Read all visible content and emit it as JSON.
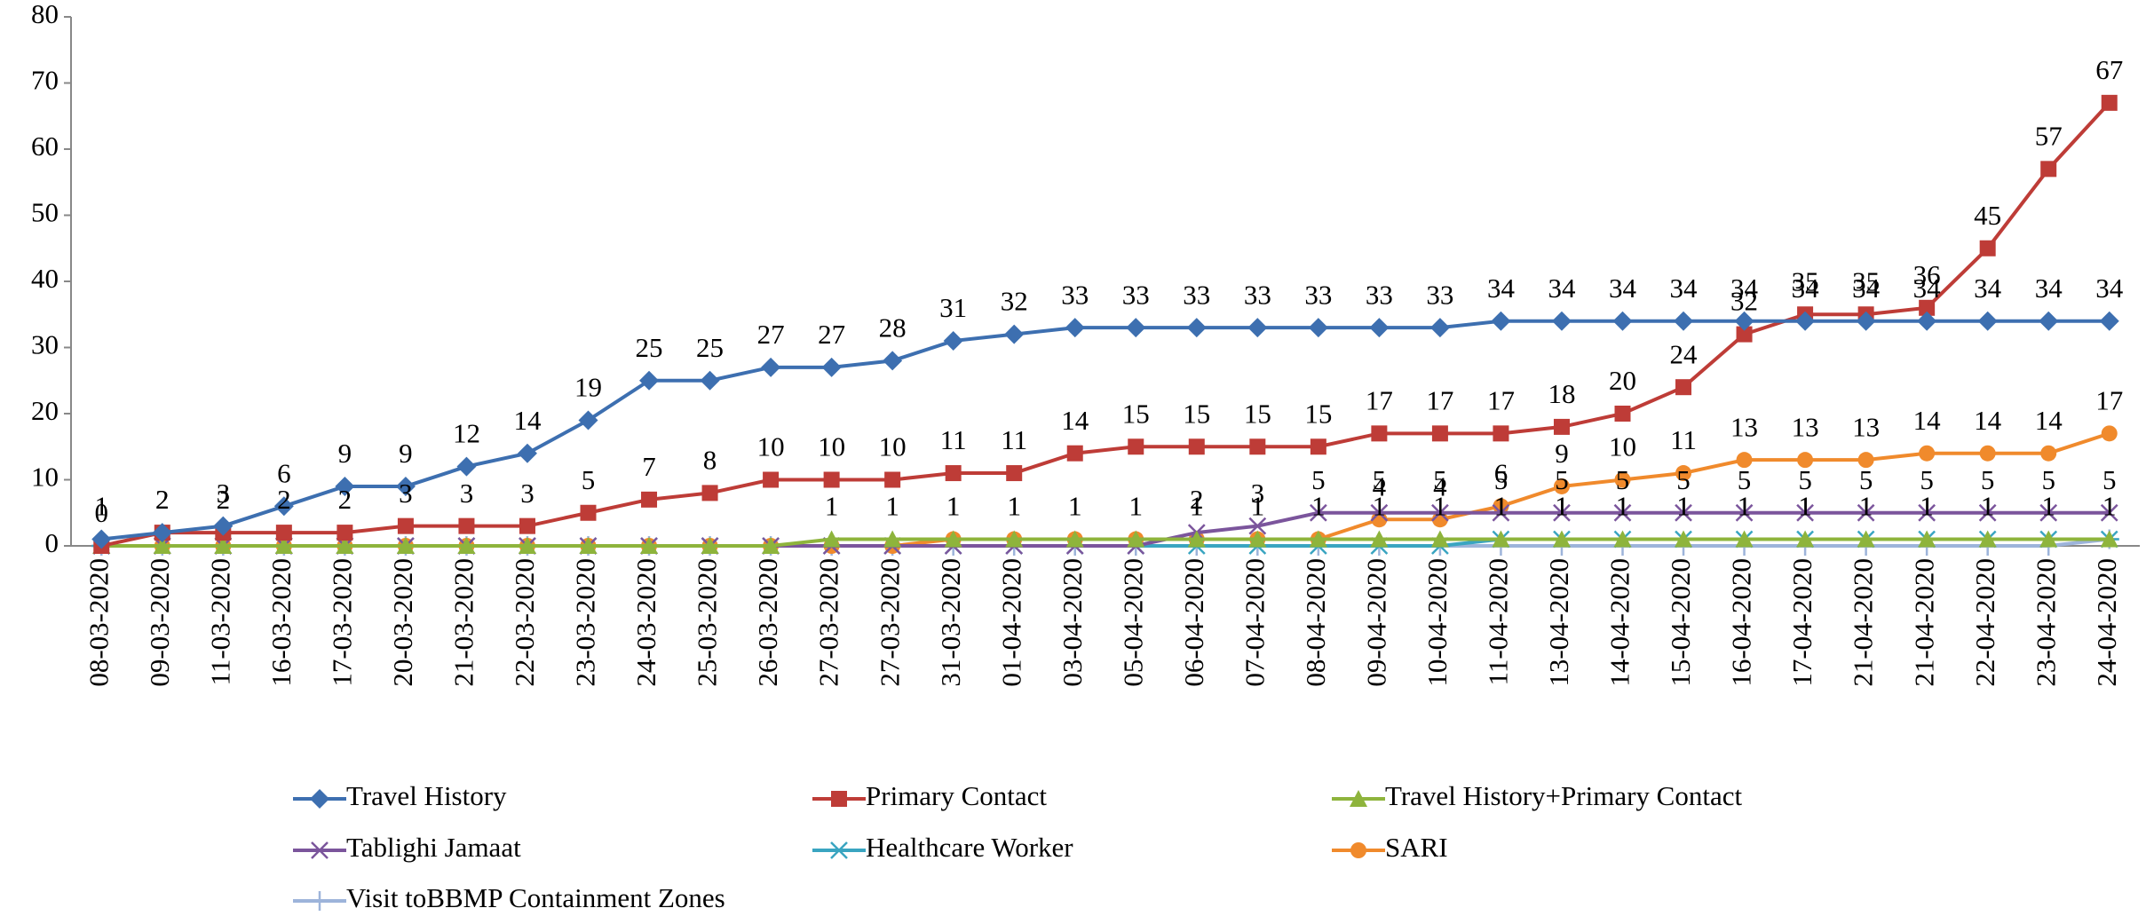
{
  "chart_data": {
    "type": "line",
    "categories": [
      "08-03-2020",
      "09-03-2020",
      "11-03-2020",
      "16-03-2020",
      "17-03-2020",
      "20-03-2020",
      "21-03-2020",
      "22-03-2020",
      "23-03-2020",
      "24-03-2020",
      "25-03-2020",
      "26-03-2020",
      "27-03-2020",
      "27-03-2020",
      "31-03-2020",
      "01-04-2020",
      "03-04-2020",
      "05-04-2020",
      "06-04-2020",
      "07-04-2020",
      "08-04-2020",
      "09-04-2020",
      "10-04-2020",
      "11-04-2020",
      "13-04-2020",
      "14-04-2020",
      "15-04-2020",
      "16-04-2020",
      "17-04-2020",
      "21-04-2020",
      "21-04-2020",
      "22-04-2020",
      "23-04-2020",
      "24-04-2020"
    ],
    "series": [
      {
        "name": "Travel History",
        "color": "#3d6fb0",
        "marker": "diamond",
        "values": [
          1,
          2,
          3,
          6,
          9,
          9,
          12,
          14,
          19,
          25,
          25,
          27,
          27,
          28,
          31,
          32,
          33,
          33,
          33,
          33,
          33,
          33,
          33,
          34,
          34,
          34,
          34,
          34,
          34,
          34,
          34,
          34,
          34,
          34
        ]
      },
      {
        "name": "Primary Contact",
        "color": "#be3c37",
        "marker": "square",
        "values": [
          0,
          2,
          2,
          2,
          2,
          3,
          3,
          3,
          5,
          7,
          8,
          10,
          10,
          10,
          11,
          11,
          14,
          15,
          15,
          15,
          15,
          17,
          17,
          17,
          18,
          20,
          24,
          32,
          35,
          35,
          36,
          45,
          57,
          67
        ]
      },
      {
        "name": "Travel History+Primary Contact",
        "color": "#8eb43c",
        "marker": "triangle",
        "values": [
          0,
          0,
          0,
          0,
          0,
          0,
          0,
          0,
          0,
          0,
          0,
          0,
          1,
          1,
          1,
          1,
          1,
          1,
          1,
          1,
          1,
          1,
          1,
          1,
          1,
          1,
          1,
          1,
          1,
          1,
          1,
          1,
          1,
          1
        ]
      },
      {
        "name": "Tablighi Jamaat",
        "color": "#7b559c",
        "marker": "x",
        "values": [
          0,
          0,
          0,
          0,
          0,
          0,
          0,
          0,
          0,
          0,
          0,
          0,
          0,
          0,
          0,
          0,
          0,
          0,
          2,
          3,
          5,
          5,
          5,
          5,
          5,
          5,
          5,
          5,
          5,
          5,
          5,
          5,
          5,
          5
        ]
      },
      {
        "name": "Healthcare Worker",
        "color": "#3aa5c1",
        "marker": "star",
        "values": [
          0,
          0,
          0,
          0,
          0,
          0,
          0,
          0,
          0,
          0,
          0,
          0,
          0,
          0,
          0,
          0,
          0,
          0,
          0,
          0,
          0,
          0,
          0,
          1,
          1,
          1,
          1,
          1,
          1,
          1,
          1,
          1,
          1,
          1
        ]
      },
      {
        "name": "SARI",
        "color": "#f08a2c",
        "marker": "circle",
        "values": [
          0,
          0,
          0,
          0,
          0,
          0,
          0,
          0,
          0,
          0,
          0,
          0,
          0,
          0,
          1,
          1,
          1,
          1,
          1,
          1,
          1,
          4,
          4,
          6,
          9,
          10,
          11,
          13,
          13,
          13,
          14,
          14,
          14,
          17
        ]
      },
      {
        "name": "Visit toBBMP Containment Zones",
        "color": "#9db4da",
        "marker": "plus",
        "values": [
          0,
          0,
          0,
          0,
          0,
          0,
          0,
          0,
          0,
          0,
          0,
          0,
          0,
          0,
          0,
          0,
          0,
          0,
          0,
          0,
          0,
          0,
          0,
          0,
          0,
          0,
          0,
          0,
          0,
          0,
          0,
          0,
          0,
          1
        ]
      }
    ],
    "ylim": [
      0,
      80
    ],
    "yticks": [
      0,
      10,
      20,
      30,
      40,
      50,
      60,
      70,
      80
    ]
  }
}
